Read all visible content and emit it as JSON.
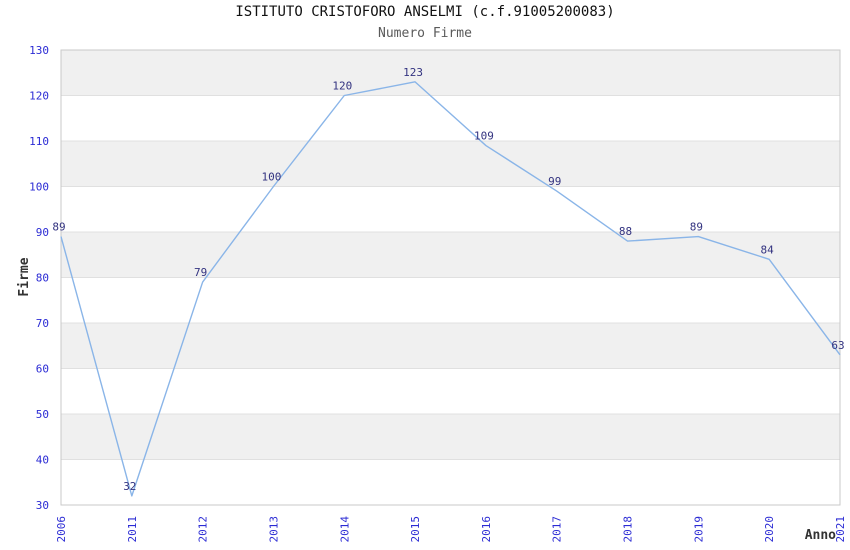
{
  "header": {
    "title": "ISTITUTO CRISTOFORO ANSELMI (c.f.91005200083)",
    "subtitle": "Numero Firme"
  },
  "chart_data": {
    "type": "line",
    "title": "ISTITUTO CRISTOFORO ANSELMI (c.f.91005200083)",
    "subtitle": "Numero Firme",
    "xlabel": "Anno",
    "ylabel": "Firme",
    "categories": [
      "2006",
      "2011",
      "2012",
      "2013",
      "2014",
      "2015",
      "2016",
      "2017",
      "2018",
      "2019",
      "2020",
      "2021"
    ],
    "values": [
      89,
      32,
      79,
      100,
      120,
      123,
      109,
      99,
      88,
      89,
      84,
      63
    ],
    "ylim": [
      30,
      130
    ],
    "yticks": [
      30,
      40,
      50,
      60,
      70,
      80,
      90,
      100,
      110,
      120,
      130
    ],
    "grid": "horizontal",
    "legend": "none",
    "band_fill": "alternating-gray",
    "point_markers": false,
    "x_tick_rotation": -90,
    "colors": {
      "line": "#8ab5e8",
      "data_label": "#333380",
      "tick_label": "#2b2bd4",
      "band": "#f0f0f0",
      "gridline": "#e0e0e0",
      "border": "#c9c9c9",
      "title": "#111111",
      "subtitle": "#5a5a5a",
      "axis_title": "#333333"
    }
  }
}
